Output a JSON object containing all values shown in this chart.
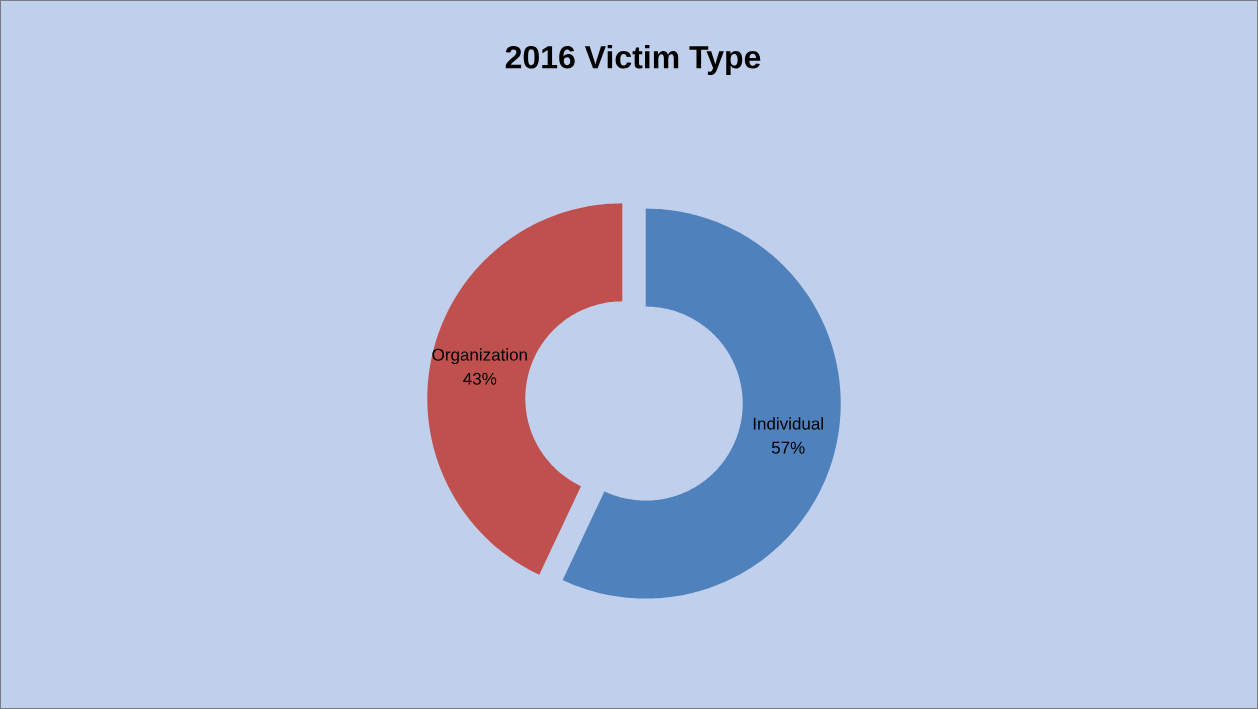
{
  "chart_data": {
    "type": "donut",
    "title": "2016 Victim Type",
    "categories": [
      "Individual",
      "Organization"
    ],
    "values": [
      57,
      43
    ],
    "colors": [
      "#4f81bd",
      "#c0504d"
    ],
    "value_labels": [
      "57%",
      "43%"
    ]
  }
}
